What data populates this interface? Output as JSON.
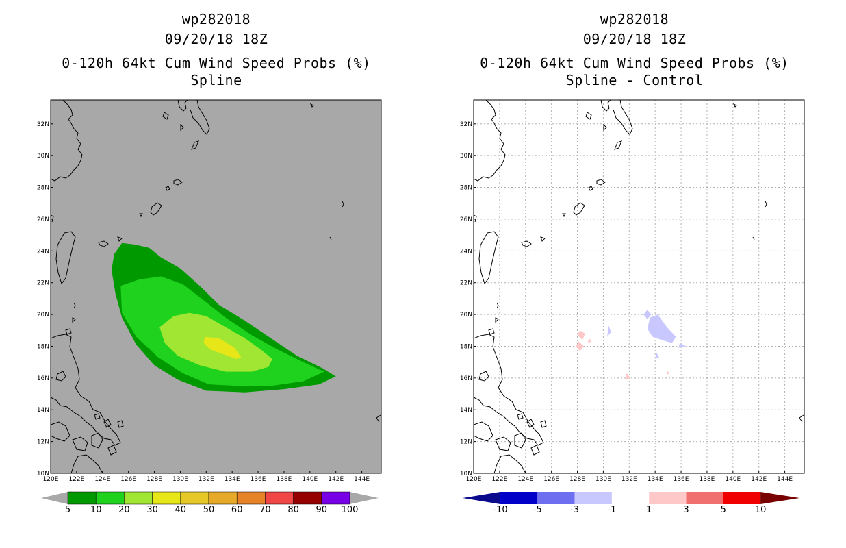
{
  "left_panel": {
    "storm": "wp282018",
    "datetime": "09/20/18 18Z",
    "title": "0-120h 64kt Cum Wind Speed Probs (%)",
    "subtitle": "Spline",
    "background_color": "#a8a8a8",
    "colorbar": {
      "labels": [
        "5",
        "10",
        "20",
        "30",
        "40",
        "50",
        "60",
        "70",
        "80",
        "90",
        "100"
      ],
      "colors": [
        "#009a00",
        "#1ed21e",
        "#a0e632",
        "#e6e619",
        "#e6c828",
        "#e6aa28",
        "#e68228",
        "#f04646",
        "#960000",
        "#7800e6"
      ]
    }
  },
  "right_panel": {
    "storm": "wp282018",
    "datetime": "09/20/18 18Z",
    "title": "0-120h 64kt Cum Wind Speed Probs (%)",
    "subtitle": "Spline - Control",
    "colorbar": {
      "labels": [
        "-10",
        "-5",
        "-3",
        "-1",
        "1",
        "3",
        "5",
        "10"
      ],
      "colors": [
        "#0000c8",
        "#6e6ef0",
        "#c8c8ff",
        "#ffffff",
        "#ffc8c8",
        "#f07070",
        "#f00000"
      ],
      "end_low": "#0a0a8c",
      "end_high": "#780000"
    }
  },
  "axes": {
    "lon_labels": [
      "120E",
      "122E",
      "124E",
      "126E",
      "128E",
      "130E",
      "132E",
      "134E",
      "136E",
      "138E",
      "140E",
      "142E",
      "144E"
    ],
    "lat_labels": [
      "10N",
      "12N",
      "14N",
      "16N",
      "18N",
      "20N",
      "22N",
      "24N",
      "26N",
      "28N",
      "30N",
      "32N"
    ],
    "lon_range": [
      120,
      145.5
    ],
    "lat_range": [
      10,
      33.5
    ]
  },
  "map_data": {
    "prob_contours": [
      {
        "level": 5,
        "color": "#009a00",
        "points": [
          [
            125.5,
            24.5
          ],
          [
            126.5,
            24.4
          ],
          [
            127.6,
            24.2
          ],
          [
            128.5,
            23.6
          ],
          [
            130,
            22.9
          ],
          [
            131.5,
            21.8
          ],
          [
            133,
            20.6
          ],
          [
            135,
            19.6
          ],
          [
            137,
            18.5
          ],
          [
            139,
            17.4
          ],
          [
            141,
            16.6
          ],
          [
            142,
            16.1
          ],
          [
            140.7,
            15.6
          ],
          [
            138,
            15.3
          ],
          [
            135,
            15.1
          ],
          [
            132,
            15.2
          ],
          [
            129.8,
            15.9
          ],
          [
            128,
            16.8
          ],
          [
            126.6,
            18.1
          ],
          [
            125.5,
            19.8
          ],
          [
            125,
            21.3
          ],
          [
            124.7,
            22.8
          ],
          [
            124.9,
            23.8
          ]
        ]
      },
      {
        "level": 10,
        "color": "#1ed21e",
        "points": [
          [
            125.4,
            21.8
          ],
          [
            126.8,
            22.2
          ],
          [
            128.5,
            22.4
          ],
          [
            130.2,
            21.9
          ],
          [
            131.8,
            20.9
          ],
          [
            133.5,
            19.8
          ],
          [
            135.5,
            18.7
          ],
          [
            137.5,
            17.8
          ],
          [
            139.5,
            17.0
          ],
          [
            141.1,
            16.4
          ],
          [
            139.5,
            15.8
          ],
          [
            137,
            15.5
          ],
          [
            134.5,
            15.5
          ],
          [
            132.2,
            15.6
          ],
          [
            130.2,
            16.3
          ],
          [
            128.3,
            17.3
          ],
          [
            126.6,
            18.6
          ],
          [
            125.5,
            20.1
          ]
        ]
      },
      {
        "level": 20,
        "color": "#a0e632",
        "points": [
          [
            128.4,
            19.2
          ],
          [
            129.5,
            19.9
          ],
          [
            130.7,
            20.1
          ],
          [
            132,
            19.9
          ],
          [
            133.5,
            19.2
          ],
          [
            135,
            18.5
          ],
          [
            136.2,
            17.8
          ],
          [
            137.1,
            17.2
          ],
          [
            136.8,
            16.7
          ],
          [
            135.5,
            16.4
          ],
          [
            133.5,
            16.4
          ],
          [
            131.5,
            16.8
          ],
          [
            129.8,
            17.4
          ],
          [
            128.8,
            18.2
          ]
        ]
      },
      {
        "level": 30,
        "color": "#e6e619",
        "points": [
          [
            131.9,
            18.6
          ],
          [
            133,
            18.5
          ],
          [
            134.2,
            17.9
          ],
          [
            134.7,
            17.3
          ],
          [
            134.3,
            17.2
          ],
          [
            133.3,
            17.5
          ],
          [
            132.3,
            17.8
          ],
          [
            131.8,
            18.2
          ]
        ]
      }
    ],
    "diff_contours": [
      {
        "color": "#c8c8ff",
        "points": [
          [
            133.6,
            19.8
          ],
          [
            134.2,
            20.0
          ],
          [
            134.9,
            19.2
          ],
          [
            135.6,
            18.6
          ],
          [
            135.3,
            18.2
          ],
          [
            134.5,
            18.4
          ],
          [
            133.8,
            18.6
          ],
          [
            133.4,
            19.1
          ]
        ]
      },
      {
        "color": "#c8c8ff",
        "points": [
          [
            133.4,
            20.3
          ],
          [
            133.7,
            20.0
          ],
          [
            133.4,
            19.7
          ],
          [
            133.1,
            20.0
          ]
        ]
      },
      {
        "color": "#c8c8ff",
        "points": [
          [
            130.4,
            19.3
          ],
          [
            130.6,
            18.9
          ],
          [
            130.3,
            18.6
          ]
        ]
      },
      {
        "color": "#c8c8ff",
        "points": [
          [
            135.9,
            18.2
          ],
          [
            136.4,
            18.0
          ],
          [
            135.8,
            17.9
          ]
        ]
      },
      {
        "color": "#c8c8ff",
        "points": [
          [
            134.1,
            17.6
          ],
          [
            134.3,
            17.3
          ],
          [
            134.0,
            17.2
          ]
        ]
      },
      {
        "color": "#ffc8c8",
        "points": [
          [
            128.2,
            19.0
          ],
          [
            128.6,
            18.8
          ],
          [
            128.4,
            18.4
          ],
          [
            128.0,
            18.7
          ]
        ]
      },
      {
        "color": "#ffc8c8",
        "points": [
          [
            128.1,
            18.3
          ],
          [
            128.5,
            18.0
          ],
          [
            128.2,
            17.7
          ],
          [
            127.9,
            18.0
          ]
        ]
      },
      {
        "color": "#ffc8c8",
        "points": [
          [
            128.9,
            18.5
          ],
          [
            129.1,
            18.3
          ],
          [
            128.8,
            18.2
          ]
        ]
      },
      {
        "color": "#ffc8c8",
        "points": [
          [
            131.8,
            16.3
          ],
          [
            132.1,
            16.0
          ],
          [
            131.7,
            15.9
          ]
        ]
      },
      {
        "color": "#ffc8c8",
        "points": [
          [
            134.9,
            16.5
          ],
          [
            135.1,
            16.3
          ],
          [
            134.9,
            16.2
          ]
        ]
      }
    ]
  }
}
